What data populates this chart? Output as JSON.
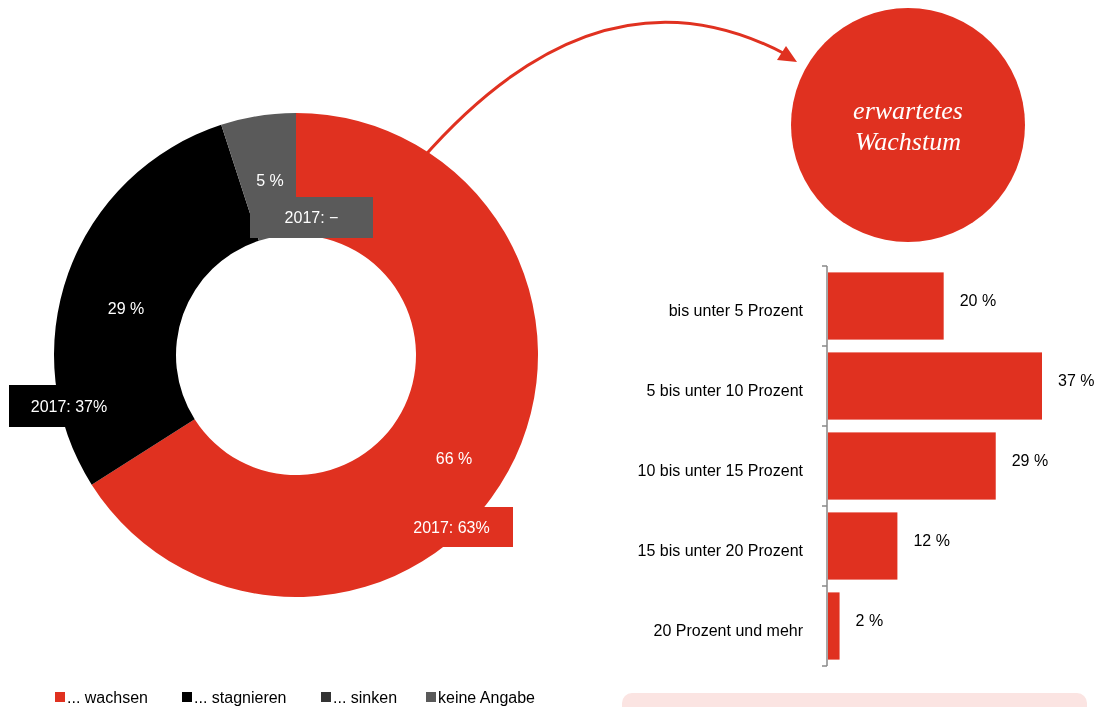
{
  "chart_data": [
    {
      "type": "donut",
      "categories": [
        "... wachsen",
        "... stagnieren",
        "... sinken",
        "keine Angabe"
      ],
      "values": [
        66,
        29,
        0,
        5
      ],
      "colors": [
        "#e03120",
        "#000000",
        "#333333",
        "#5a5a5a"
      ],
      "value_labels": [
        "66 %",
        "29 %",
        null,
        "5 %"
      ],
      "annotations": [
        "2017: 63%",
        "2017: 37%",
        "2017: −"
      ],
      "legend": "bottom"
    },
    {
      "type": "bar",
      "orientation": "horizontal",
      "title": "erwartetes Wachstum",
      "categories": [
        "bis unter 5 Prozent",
        "5 bis unter 10 Prozent",
        "10 bis unter 15 Prozent",
        "15 bis unter 20 Prozent",
        "20 Prozent und mehr"
      ],
      "values": [
        20,
        37,
        29,
        12,
        2
      ],
      "color": "#e03120",
      "value_labels": [
        "20 %",
        "37 %",
        "29 %",
        "12 %",
        "2 %"
      ]
    }
  ]
}
